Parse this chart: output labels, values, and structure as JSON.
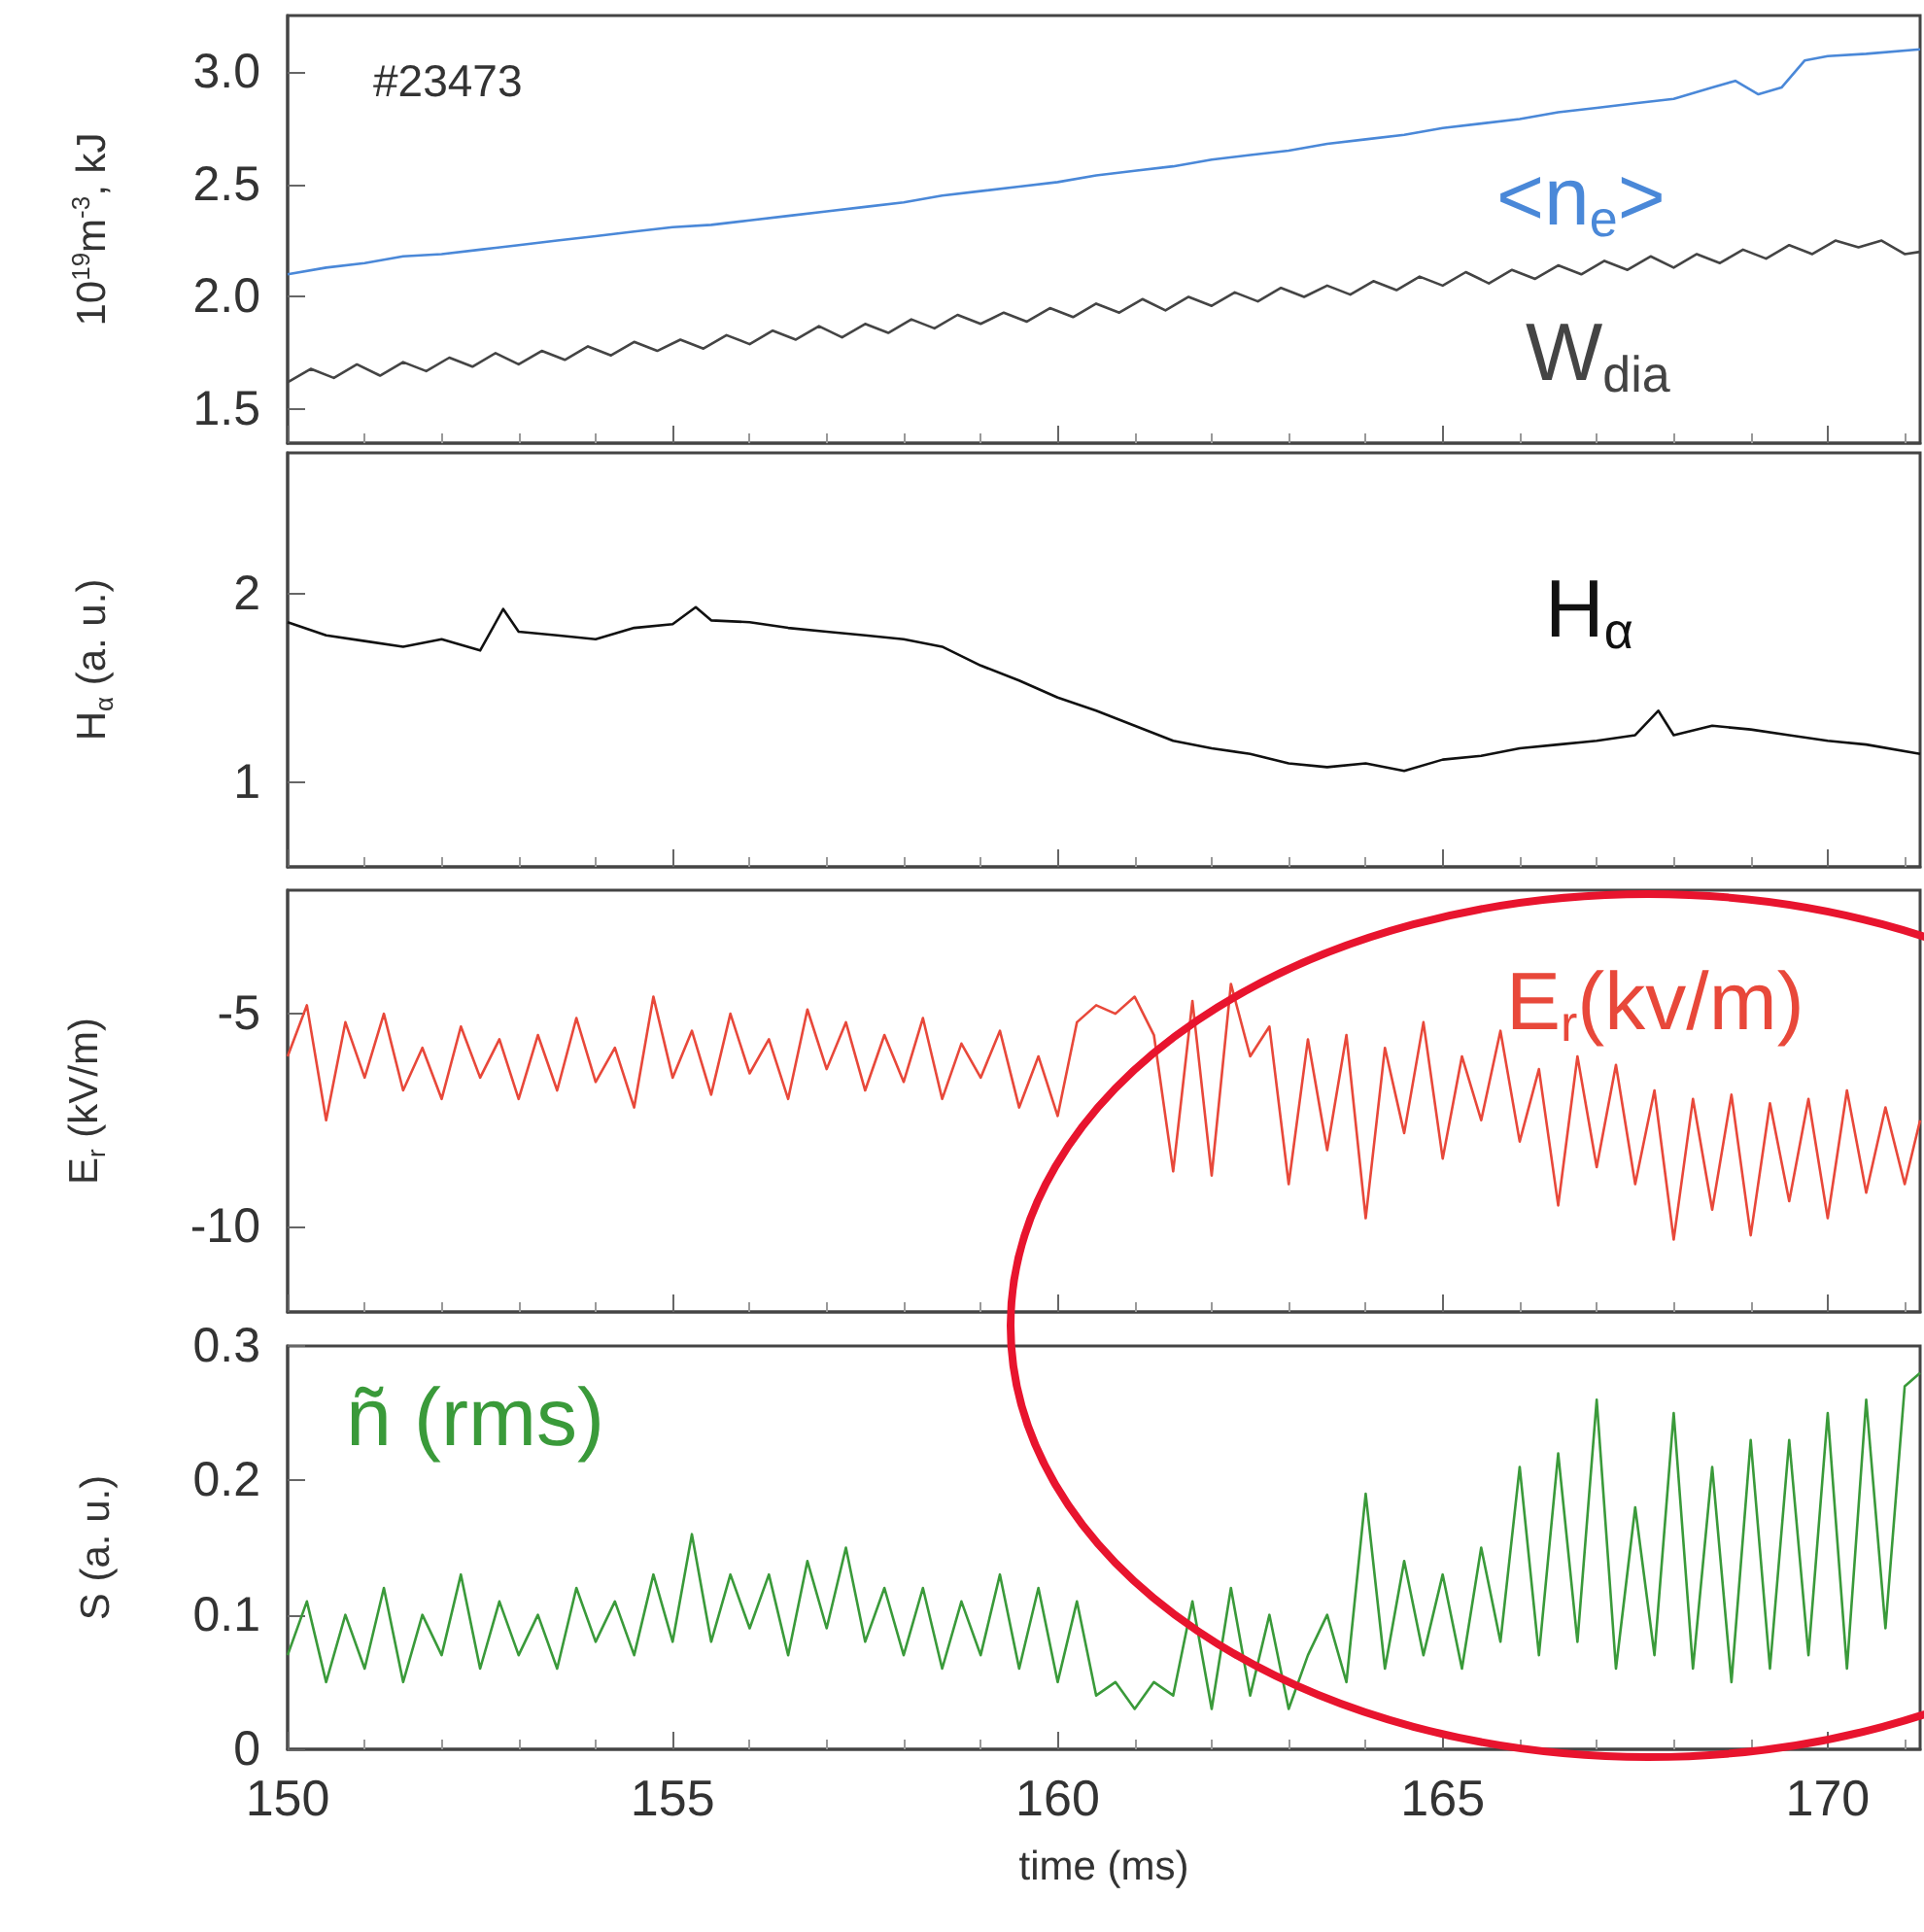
{
  "chart_data": [
    {
      "type": "line",
      "ylabel": "10$^{19}$m$^{-3}$, kJ",
      "annotations": [
        "#23473"
      ],
      "xlim": [
        150,
        171.2
      ],
      "xticks": [
        150,
        155,
        160,
        165,
        170
      ],
      "ylim": [
        1.35,
        3.25
      ],
      "yticks": [
        1.5,
        {
          "value": 2,
          "label": "2.0"
        },
        2.5,
        {
          "value": 3,
          "label": "3.0"
        }
      ],
      "tick_labels": "y",
      "series": [
        {
          "name": "<n$_{e}$>",
          "color": "#4a88d8",
          "x": [
            150,
            150.5,
            151,
            151.5,
            152,
            152.5,
            153,
            153.5,
            154,
            154.5,
            155,
            155.5,
            156,
            156.5,
            157,
            157.5,
            158,
            158.5,
            159,
            159.5,
            160,
            160.5,
            161,
            161.5,
            162,
            162.5,
            163,
            163.5,
            164,
            164.5,
            165,
            165.5,
            166,
            166.5,
            167,
            167.5,
            168,
            168.5,
            168.8,
            169.1,
            169.4,
            169.7,
            170,
            170.5,
            171.2
          ],
          "values": [
            2.1,
            2.13,
            2.15,
            2.18,
            2.19,
            2.21,
            2.23,
            2.25,
            2.27,
            2.29,
            2.31,
            2.32,
            2.34,
            2.36,
            2.38,
            2.4,
            2.42,
            2.45,
            2.47,
            2.49,
            2.51,
            2.54,
            2.56,
            2.58,
            2.61,
            2.63,
            2.65,
            2.68,
            2.7,
            2.72,
            2.75,
            2.77,
            2.79,
            2.82,
            2.84,
            2.86,
            2.88,
            2.93,
            2.96,
            2.9,
            2.93,
            3.05,
            3.07,
            3.08,
            3.1
          ]
        },
        {
          "name": "W$_{dia}$",
          "color": "#444444",
          "x": [
            150,
            150.3,
            150.6,
            150.9,
            151.2,
            151.5,
            151.8,
            152.1,
            152.4,
            152.7,
            153,
            153.3,
            153.6,
            153.9,
            154.2,
            154.5,
            154.8,
            155.1,
            155.4,
            155.7,
            156,
            156.3,
            156.6,
            156.9,
            157.2,
            157.5,
            157.8,
            158.1,
            158.4,
            158.7,
            159,
            159.3,
            159.6,
            159.9,
            160.2,
            160.5,
            160.8,
            161.1,
            161.4,
            161.7,
            162,
            162.3,
            162.6,
            162.9,
            163.2,
            163.5,
            163.8,
            164.1,
            164.4,
            164.7,
            165,
            165.3,
            165.6,
            165.9,
            166.2,
            166.5,
            166.8,
            167.1,
            167.4,
            167.7,
            168,
            168.3,
            168.6,
            168.9,
            169.2,
            169.5,
            169.8,
            170.1,
            170.4,
            170.7,
            171,
            171.2
          ],
          "values": [
            1.62,
            1.68,
            1.64,
            1.7,
            1.65,
            1.71,
            1.67,
            1.73,
            1.69,
            1.75,
            1.7,
            1.76,
            1.72,
            1.78,
            1.74,
            1.8,
            1.76,
            1.81,
            1.77,
            1.83,
            1.79,
            1.85,
            1.81,
            1.87,
            1.82,
            1.88,
            1.84,
            1.9,
            1.86,
            1.92,
            1.88,
            1.93,
            1.89,
            1.95,
            1.91,
            1.97,
            1.93,
            1.99,
            1.94,
            2.0,
            1.96,
            2.02,
            1.98,
            2.04,
            2.0,
            2.05,
            2.01,
            2.07,
            2.03,
            2.09,
            2.05,
            2.11,
            2.06,
            2.12,
            2.08,
            2.14,
            2.1,
            2.16,
            2.12,
            2.18,
            2.13,
            2.19,
            2.15,
            2.21,
            2.17,
            2.23,
            2.19,
            2.25,
            2.22,
            2.25,
            2.19,
            2.2
          ]
        }
      ]
    },
    {
      "type": "line",
      "ylabel": "H$_{α}$ (a. u.)",
      "xlim": [
        150,
        171.2
      ],
      "xticks": [
        150,
        155,
        160,
        165,
        170
      ],
      "ylim": [
        0.55,
        2.75
      ],
      "yticks": [
        1,
        2
      ],
      "tick_labels": "y",
      "series": [
        {
          "name": "H$_{α}$",
          "color": "#111111",
          "x": [
            150,
            150.5,
            151,
            151.5,
            152,
            152.5,
            152.8,
            153,
            153.5,
            154,
            154.5,
            155,
            155.3,
            155.5,
            156,
            156.5,
            157,
            157.5,
            158,
            158.5,
            159,
            159.5,
            160,
            160.5,
            161,
            161.5,
            162,
            162.5,
            163,
            163.5,
            164,
            164.5,
            165,
            165.5,
            166,
            166.5,
            167,
            167.5,
            167.8,
            168,
            168.5,
            169,
            169.5,
            170,
            170.5,
            171.2
          ],
          "values": [
            1.85,
            1.78,
            1.75,
            1.72,
            1.76,
            1.7,
            1.92,
            1.8,
            1.78,
            1.76,
            1.82,
            1.84,
            1.93,
            1.86,
            1.85,
            1.82,
            1.8,
            1.78,
            1.76,
            1.72,
            1.62,
            1.54,
            1.45,
            1.38,
            1.3,
            1.22,
            1.18,
            1.15,
            1.1,
            1.08,
            1.1,
            1.06,
            1.12,
            1.14,
            1.18,
            1.2,
            1.22,
            1.25,
            1.38,
            1.25,
            1.3,
            1.28,
            1.25,
            1.22,
            1.2,
            1.15
          ]
        }
      ]
    },
    {
      "type": "line",
      "ylabel": "E$_{r}$ (kV/m)",
      "xlim": [
        150,
        171.2
      ],
      "xticks": [
        150,
        155,
        160,
        165,
        170
      ],
      "ylim": [
        -12,
        -2.1
      ],
      "yticks": [
        -10,
        -5
      ],
      "tick_labels": "y",
      "series": [
        {
          "name": "E$_{r}$(kv/m)",
          "color": "#e8483a",
          "x": [
            150,
            150.25,
            150.5,
            150.75,
            151,
            151.25,
            151.5,
            151.75,
            152,
            152.25,
            152.5,
            152.75,
            153,
            153.25,
            153.5,
            153.75,
            154,
            154.25,
            154.5,
            154.75,
            155,
            155.25,
            155.5,
            155.75,
            156,
            156.25,
            156.5,
            156.75,
            157,
            157.25,
            157.5,
            157.75,
            158,
            158.25,
            158.5,
            158.75,
            159,
            159.25,
            159.5,
            159.75,
            160,
            160.25,
            160.5,
            160.75,
            161,
            161.25,
            161.5,
            161.75,
            162,
            162.25,
            162.5,
            162.75,
            163,
            163.25,
            163.5,
            163.75,
            164,
            164.25,
            164.5,
            164.75,
            165,
            165.25,
            165.5,
            165.75,
            166,
            166.25,
            166.5,
            166.75,
            167,
            167.25,
            167.5,
            167.75,
            168,
            168.25,
            168.5,
            168.75,
            169,
            169.25,
            169.5,
            169.75,
            170,
            170.25,
            170.5,
            170.75,
            171,
            171.2
          ],
          "values": [
            -6.0,
            -4.8,
            -7.5,
            -5.2,
            -6.5,
            -5.0,
            -6.8,
            -5.8,
            -7.0,
            -5.3,
            -6.5,
            -5.6,
            -7.0,
            -5.5,
            -6.8,
            -5.1,
            -6.6,
            -5.8,
            -7.2,
            -4.6,
            -6.5,
            -5.4,
            -6.9,
            -5.0,
            -6.4,
            -5.6,
            -7.0,
            -4.9,
            -6.3,
            -5.2,
            -6.8,
            -5.5,
            -6.6,
            -5.1,
            -7.0,
            -5.7,
            -6.5,
            -5.4,
            -7.2,
            -6.0,
            -7.4,
            -5.2,
            -4.8,
            -5.0,
            -4.6,
            -5.5,
            -8.7,
            -4.7,
            -8.8,
            -4.3,
            -6.0,
            -5.3,
            -9.0,
            -5.6,
            -8.2,
            -5.5,
            -9.8,
            -5.8,
            -7.8,
            -5.2,
            -8.4,
            -6.0,
            -7.5,
            -5.4,
            -8.0,
            -6.3,
            -9.5,
            -6.0,
            -8.6,
            -6.2,
            -9.0,
            -6.8,
            -10.3,
            -7.0,
            -9.6,
            -6.9,
            -10.2,
            -7.1,
            -9.4,
            -7.0,
            -9.8,
            -6.8,
            -9.2,
            -7.2,
            -9.0,
            -7.5
          ]
        }
      ]
    },
    {
      "type": "line",
      "xlabel": "time (ms)",
      "ylabel": "S (a. u.)",
      "xlim": [
        150,
        171.2
      ],
      "xticks": [
        150,
        155,
        160,
        165,
        170
      ],
      "ylim": [
        0,
        0.3
      ],
      "yticks": [
        0,
        0.1,
        0.2,
        0.3
      ],
      "series": [
        {
          "name": "ñ (rms)",
          "color": "#3a9a3a",
          "x": [
            150,
            150.25,
            150.5,
            150.75,
            151,
            151.25,
            151.5,
            151.75,
            152,
            152.25,
            152.5,
            152.75,
            153,
            153.25,
            153.5,
            153.75,
            154,
            154.25,
            154.5,
            154.75,
            155,
            155.25,
            155.5,
            155.75,
            156,
            156.25,
            156.5,
            156.75,
            157,
            157.25,
            157.5,
            157.75,
            158,
            158.25,
            158.5,
            158.75,
            159,
            159.25,
            159.5,
            159.75,
            160,
            160.25,
            160.5,
            160.75,
            161,
            161.25,
            161.5,
            161.75,
            162,
            162.25,
            162.5,
            162.75,
            163,
            163.25,
            163.5,
            163.75,
            164,
            164.25,
            164.5,
            164.75,
            165,
            165.25,
            165.5,
            165.75,
            166,
            166.25,
            166.5,
            166.75,
            167,
            167.25,
            167.5,
            167.75,
            168,
            168.25,
            168.5,
            168.75,
            169,
            169.25,
            169.5,
            169.75,
            170,
            170.25,
            170.5,
            170.75,
            171,
            171.2
          ],
          "values": [
            0.07,
            0.11,
            0.05,
            0.1,
            0.06,
            0.12,
            0.05,
            0.1,
            0.07,
            0.13,
            0.06,
            0.11,
            0.07,
            0.1,
            0.06,
            0.12,
            0.08,
            0.11,
            0.07,
            0.13,
            0.08,
            0.16,
            0.08,
            0.13,
            0.09,
            0.13,
            0.07,
            0.14,
            0.09,
            0.15,
            0.08,
            0.12,
            0.07,
            0.12,
            0.06,
            0.11,
            0.07,
            0.13,
            0.06,
            0.12,
            0.05,
            0.11,
            0.04,
            0.05,
            0.03,
            0.05,
            0.04,
            0.11,
            0.03,
            0.12,
            0.04,
            0.1,
            0.03,
            0.07,
            0.1,
            0.05,
            0.19,
            0.06,
            0.14,
            0.07,
            0.13,
            0.06,
            0.15,
            0.08,
            0.21,
            0.07,
            0.22,
            0.08,
            0.26,
            0.06,
            0.18,
            0.07,
            0.25,
            0.06,
            0.21,
            0.05,
            0.23,
            0.06,
            0.23,
            0.07,
            0.25,
            0.06,
            0.26,
            0.09,
            0.27,
            0.28
          ]
        }
      ]
    }
  ]
}
